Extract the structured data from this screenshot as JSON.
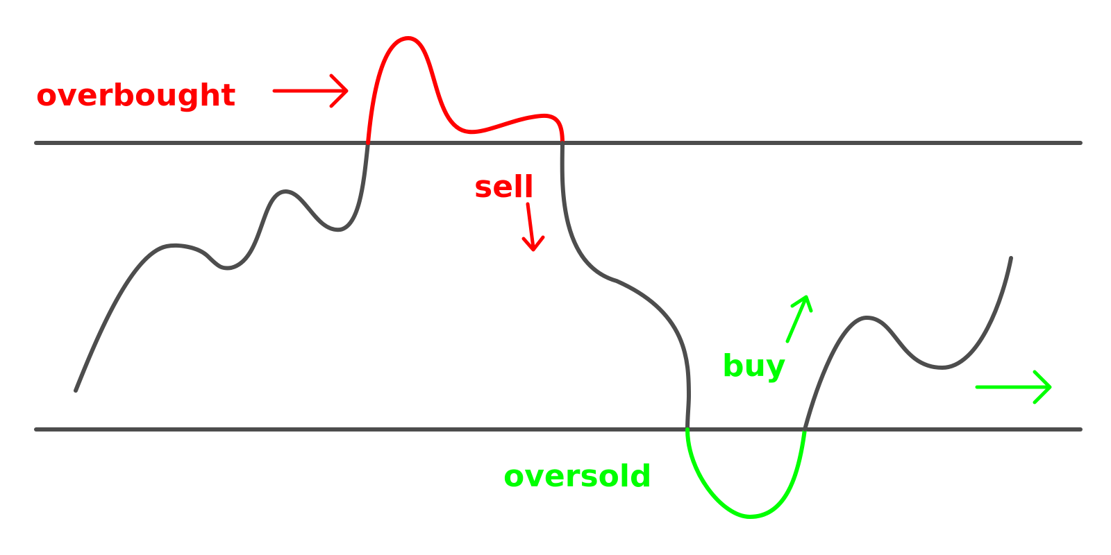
{
  "labels": {
    "overbought": "overbought",
    "sell": "sell",
    "buy": "buy",
    "oversold": "oversold"
  },
  "colors": {
    "line": "#4d4d4d",
    "overbought": "#ff0000",
    "oversold": "#00ff00",
    "background": "#ffffff"
  },
  "icons": {
    "overbought_arrow": "arrow-right-icon",
    "sell_arrow": "arrow-down-icon",
    "buy_arrow": "arrow-up-icon",
    "trend_arrow": "arrow-right-icon"
  }
}
